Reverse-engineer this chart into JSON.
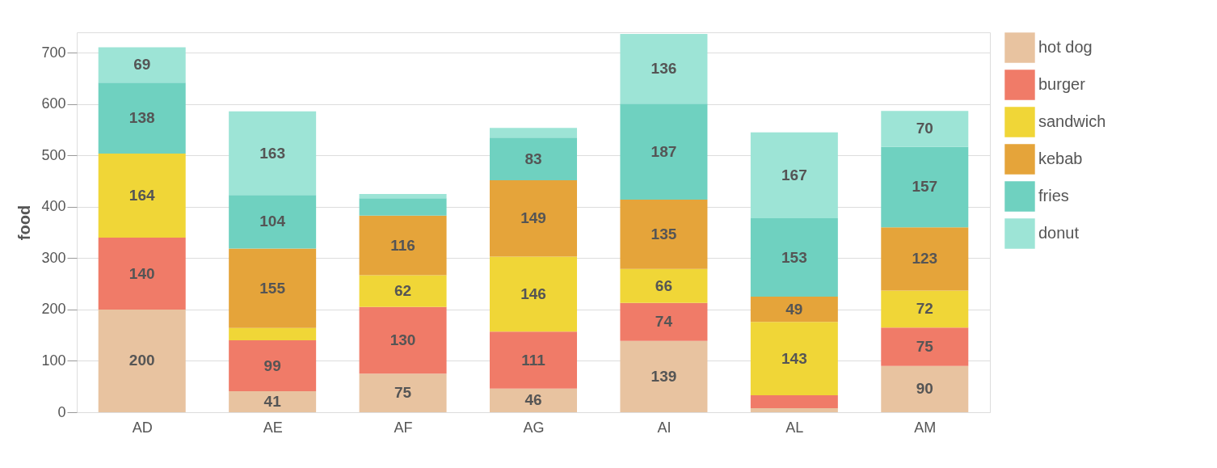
{
  "chart_data": {
    "type": "bar",
    "stacked": true,
    "ylabel": "food",
    "categories": [
      "AD",
      "AE",
      "AF",
      "AG",
      "AI",
      "AL",
      "AM"
    ],
    "series": [
      {
        "name": "hot dog",
        "color": "#e8c3a0",
        "values": [
          200,
          41,
          75,
          46,
          139,
          8,
          90
        ],
        "value_labels": [
          "200",
          "41",
          "75",
          "46",
          "139",
          null,
          "90"
        ]
      },
      {
        "name": "burger",
        "color": "#f07b68",
        "values": [
          140,
          99,
          130,
          111,
          74,
          25,
          75
        ],
        "value_labels": [
          "140",
          "99",
          "130",
          "111",
          "74",
          null,
          "75"
        ]
      },
      {
        "name": "sandwich",
        "color": "#f0d637",
        "values": [
          164,
          24,
          62,
          146,
          66,
          143,
          72
        ],
        "value_labels": [
          "164",
          null,
          "62",
          "146",
          "66",
          "143",
          "72"
        ]
      },
      {
        "name": "kebab",
        "color": "#e5a43a",
        "values": [
          0,
          155,
          116,
          149,
          135,
          49,
          123
        ],
        "value_labels": [
          null,
          "155",
          "116",
          "149",
          "135",
          "49",
          "123"
        ]
      },
      {
        "name": "fries",
        "color": "#6fd1c0",
        "values": [
          138,
          104,
          34,
          83,
          187,
          153,
          157
        ],
        "value_labels": [
          "138",
          "104",
          null,
          "83",
          "187",
          "153",
          "157"
        ]
      },
      {
        "name": "donut",
        "color": "#9de4d6",
        "values": [
          69,
          163,
          8,
          19,
          136,
          167,
          70
        ],
        "value_labels": [
          "69",
          "163",
          null,
          null,
          "136",
          "167",
          "70"
        ]
      }
    ],
    "ylim": [
      0,
      740
    ],
    "yticks": [
      0,
      100,
      200,
      300,
      400,
      500,
      600,
      700
    ],
    "grid": "y",
    "legend": "right"
  }
}
